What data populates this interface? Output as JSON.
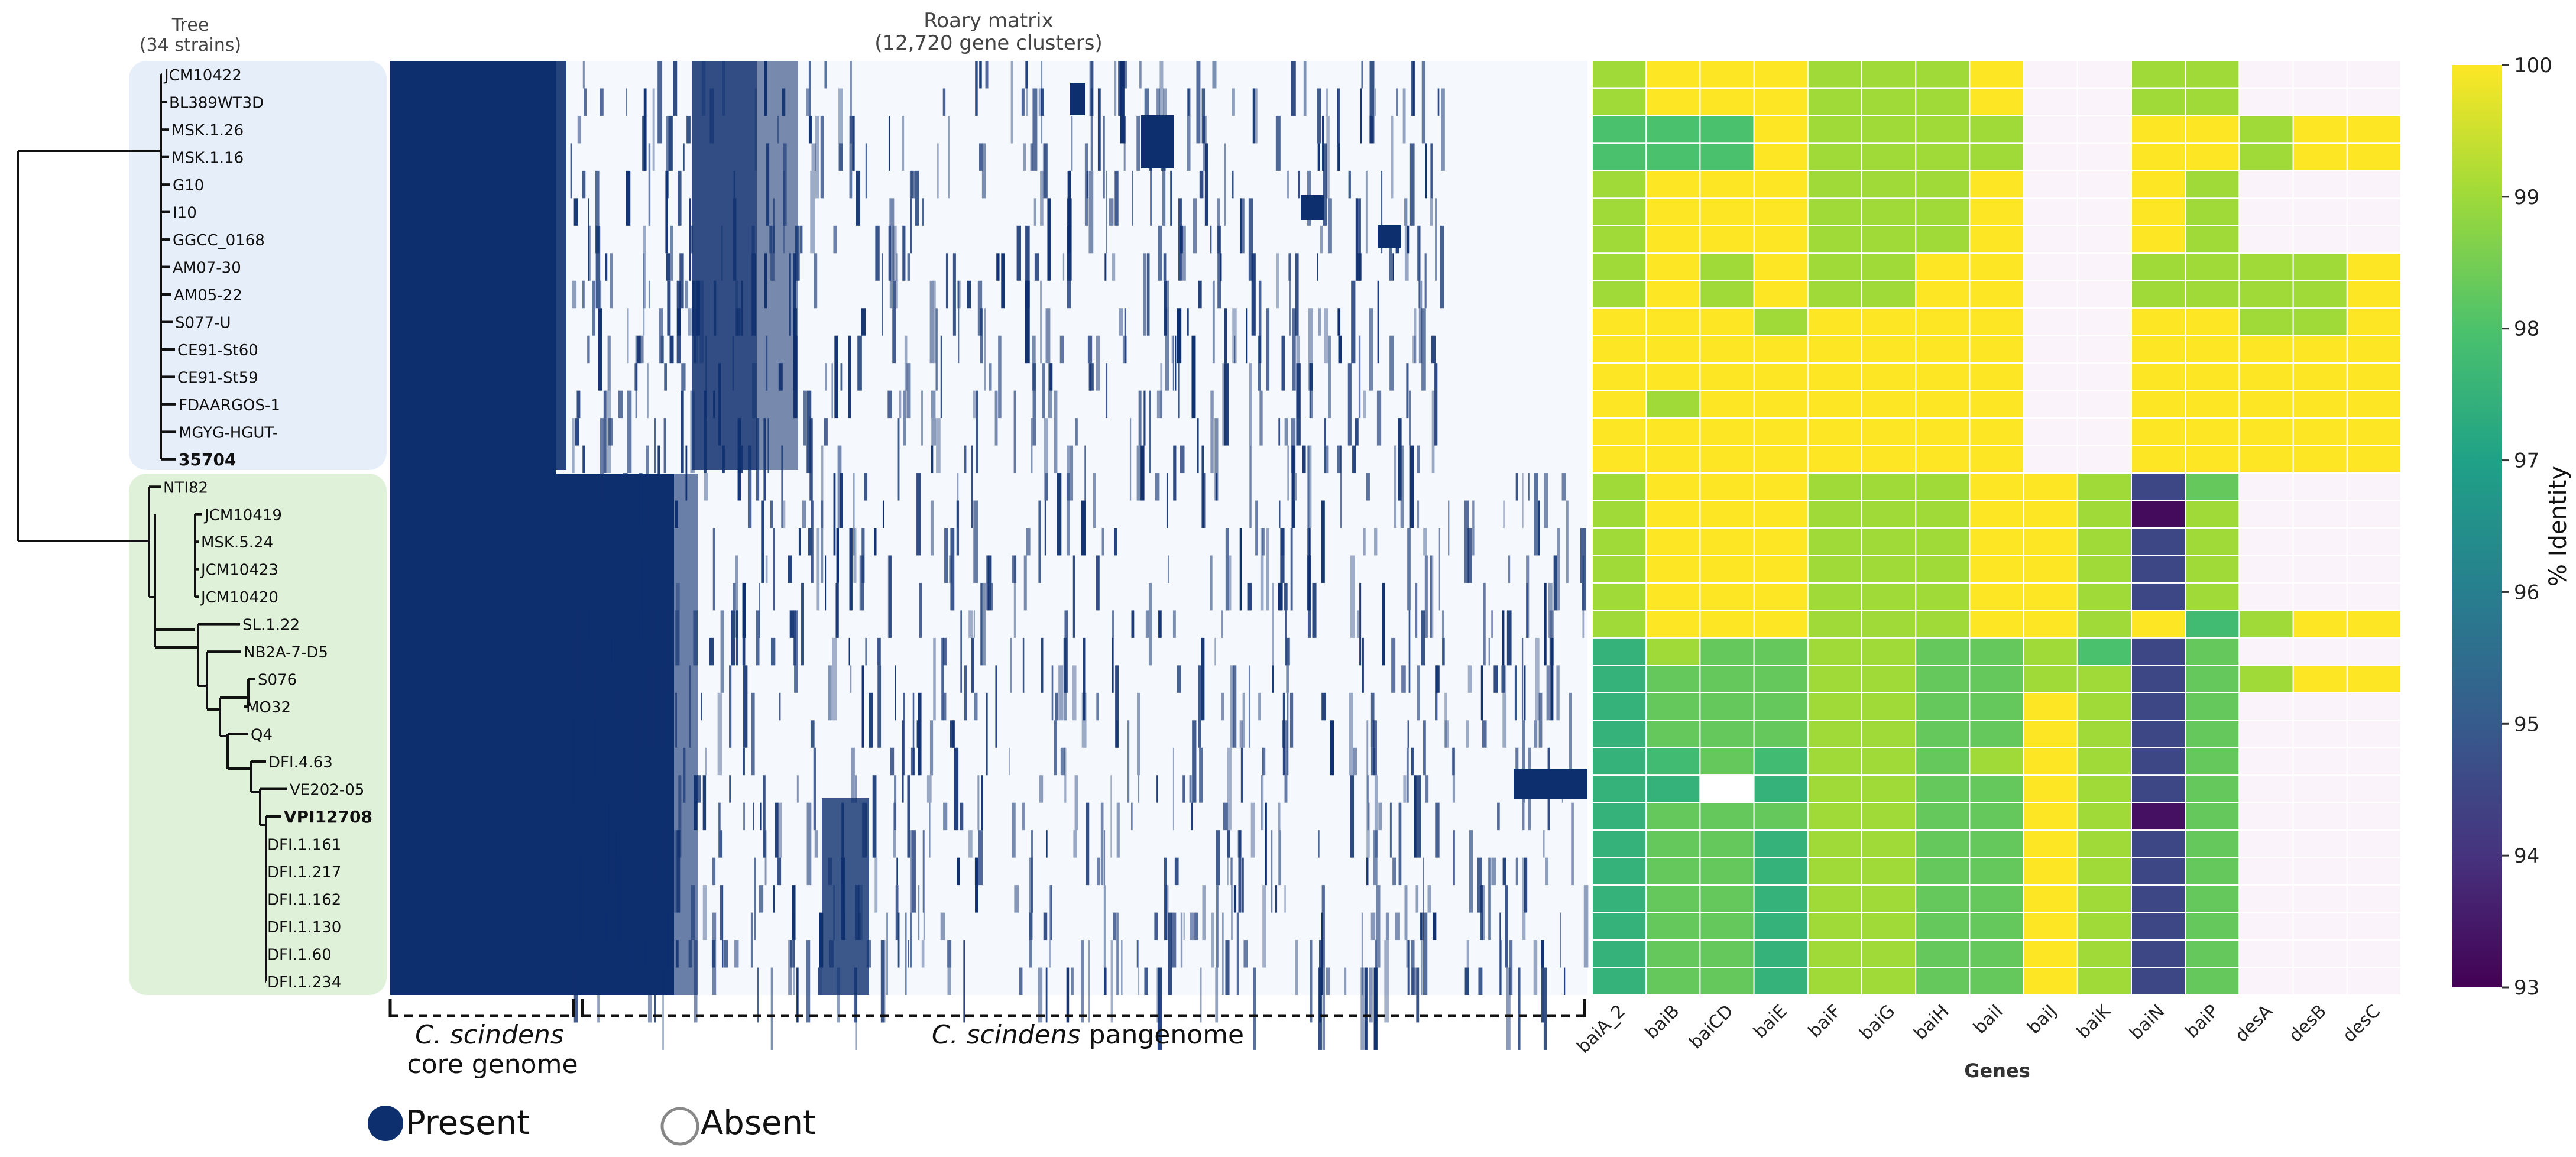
{
  "tree": {
    "title": "Tree",
    "subtitle": "(34 strains)",
    "group1_color": "#e6eefa",
    "group2_color": "#dff1d9"
  },
  "matrix": {
    "title": "Roary matrix",
    "subtitle": "(12,720 gene clusters)",
    "present_color": "#0e2f6e",
    "absent_color": "#f5f8fd"
  },
  "bracket": {
    "core_italic": "C. scindens",
    "core_rest": "core genome",
    "pan_italic": "C. scindens",
    "pan_rest": " pangenome"
  },
  "legend": {
    "present": "Present",
    "absent": "Absent"
  },
  "colorbar": {
    "label": "% Identity",
    "ticks": [
      "100",
      "99",
      "98",
      "97",
      "96",
      "95",
      "94",
      "93"
    ]
  },
  "chart_data": {
    "type": "heatmap",
    "title": "Roary matrix",
    "xlabel": "Genes",
    "ylabel": "",
    "zlabel": "% Identity",
    "zlim": [
      93,
      100
    ],
    "strains": [
      "JCM10422",
      "BL389WT3D",
      "MSK.1.26",
      "MSK.1.16",
      "G10",
      "I10",
      "GGCC_0168",
      "AM07-30",
      "AM05-22",
      "S077-U",
      "CE91-St60",
      "CE91-St59",
      "FDAARGOS-1",
      "MGYG-HGUT-",
      "35704",
      "NTI82",
      "JCM10419",
      "MSK.5.24",
      "JCM10423",
      "JCM10420",
      "SL.1.22",
      "NB2A-7-D5",
      "S076",
      "MO32",
      "Q4",
      "DFI.4.63",
      "VE202-05",
      "VPI12708",
      "DFI.1.161",
      "DFI.1.217",
      "DFI.1.162",
      "DFI.1.130",
      "DFI.1.60",
      "DFI.1.234"
    ],
    "bold_strains": [
      "35704",
      "VPI12708"
    ],
    "genes": [
      "baiA_2",
      "baiB",
      "baiCD",
      "baiE",
      "baiF",
      "baiG",
      "baiH",
      "baiI",
      "baiJ",
      "baiK",
      "baiN",
      "baiP",
      "desA",
      "desB",
      "desC"
    ],
    "values": [
      [
        99,
        100,
        100,
        100,
        99,
        99,
        99,
        100,
        null,
        null,
        99,
        99,
        null,
        null,
        null
      ],
      [
        99,
        100,
        100,
        100,
        99,
        99,
        99,
        100,
        null,
        null,
        99,
        99,
        null,
        null,
        null
      ],
      [
        98,
        98,
        98,
        100,
        99,
        99,
        99,
        99,
        null,
        null,
        100,
        100,
        99,
        100,
        100
      ],
      [
        98,
        98,
        98,
        100,
        99,
        99,
        99,
        99,
        null,
        null,
        100,
        100,
        99,
        100,
        100
      ],
      [
        99,
        100,
        100,
        100,
        99,
        99,
        99,
        100,
        null,
        null,
        100,
        99,
        null,
        null,
        null
      ],
      [
        99,
        100,
        100,
        100,
        99,
        99,
        99,
        100,
        null,
        null,
        100,
        99,
        null,
        null,
        null
      ],
      [
        99,
        100,
        100,
        100,
        99,
        99,
        99,
        100,
        null,
        null,
        100,
        99,
        null,
        null,
        null
      ],
      [
        99,
        100,
        99,
        100,
        99,
        99,
        100,
        100,
        null,
        null,
        99,
        99,
        99,
        99,
        100
      ],
      [
        99,
        100,
        99,
        100,
        99,
        99,
        100,
        100,
        null,
        null,
        99,
        99,
        99,
        99,
        100
      ],
      [
        100,
        100,
        100,
        99,
        100,
        100,
        100,
        100,
        null,
        null,
        100,
        100,
        99,
        99,
        100
      ],
      [
        100,
        100,
        100,
        100,
        100,
        100,
        100,
        100,
        null,
        null,
        100,
        100,
        100,
        100,
        100
      ],
      [
        100,
        100,
        100,
        100,
        100,
        100,
        100,
        100,
        null,
        null,
        100,
        100,
        100,
        100,
        100
      ],
      [
        100,
        99,
        100,
        100,
        100,
        100,
        100,
        100,
        null,
        null,
        100,
        100,
        100,
        100,
        100
      ],
      [
        100,
        100,
        100,
        100,
        100,
        100,
        100,
        100,
        null,
        null,
        100,
        100,
        100,
        100,
        100
      ],
      [
        100,
        100,
        100,
        100,
        100,
        100,
        100,
        100,
        null,
        null,
        100,
        100,
        100,
        100,
        100
      ],
      [
        99,
        100,
        100,
        100,
        99,
        99,
        99,
        100,
        100,
        99,
        94.5,
        98.3,
        null,
        null,
        null
      ],
      [
        99,
        100,
        100,
        100,
        99,
        99,
        99,
        100,
        100,
        99,
        93.2,
        99,
        null,
        null,
        null
      ],
      [
        99,
        100,
        100,
        100,
        99,
        99,
        99,
        100,
        100,
        99,
        94.5,
        99,
        null,
        null,
        null
      ],
      [
        99,
        100,
        100,
        100,
        99,
        99,
        99,
        100,
        100,
        99,
        94.5,
        99,
        null,
        null,
        null
      ],
      [
        99,
        100,
        100,
        100,
        99,
        99,
        99,
        100,
        100,
        99,
        94.5,
        99,
        null,
        null,
        null
      ],
      [
        99,
        100,
        100,
        100,
        99,
        99,
        99,
        100,
        100,
        99,
        100,
        97.8,
        99,
        100,
        100
      ],
      [
        97.5,
        99,
        98.3,
        98.3,
        99,
        99,
        98.3,
        98.3,
        99,
        98,
        94.5,
        98.3,
        null,
        null,
        null
      ],
      [
        97.5,
        98.3,
        98.3,
        98.3,
        99,
        99,
        98.3,
        98.3,
        99,
        99,
        94.5,
        98.3,
        99,
        100,
        100
      ],
      [
        97.5,
        98.3,
        98.3,
        98.3,
        99,
        99,
        98.3,
        98.3,
        100,
        99,
        94.5,
        98.3,
        null,
        null,
        null
      ],
      [
        97.5,
        98.3,
        98.3,
        98.3,
        99,
        99,
        98.3,
        98.3,
        100,
        99,
        94.5,
        98.3,
        null,
        null,
        null
      ],
      [
        97.5,
        97.8,
        98.3,
        97.8,
        99,
        99,
        98.3,
        99,
        100,
        99,
        94.5,
        98.3,
        null,
        null,
        null
      ],
      [
        97.5,
        97.5,
        null,
        97.5,
        99,
        99,
        98.3,
        98.3,
        100,
        99,
        94.5,
        98.3,
        null,
        null,
        null
      ],
      [
        97.5,
        98.3,
        98.3,
        98.3,
        99,
        99,
        98.3,
        98.3,
        100,
        99,
        93.3,
        98.3,
        null,
        null,
        null
      ],
      [
        97.5,
        98.3,
        98.3,
        97.5,
        99,
        99,
        98.3,
        98.3,
        100,
        99,
        94.5,
        98.3,
        null,
        null,
        null
      ],
      [
        97.5,
        98.3,
        98.3,
        97.5,
        99,
        99,
        98.3,
        98.3,
        100,
        99,
        94.5,
        98.3,
        null,
        null,
        null
      ],
      [
        97.5,
        98.3,
        98.3,
        97.5,
        99,
        99,
        98.3,
        98.3,
        100,
        99,
        94.5,
        98.3,
        null,
        null,
        null
      ],
      [
        97.5,
        98.3,
        98.3,
        97.5,
        99,
        99,
        98.3,
        98.3,
        100,
        99,
        94.5,
        98.3,
        null,
        null,
        null
      ],
      [
        97.5,
        98.3,
        98.3,
        97.5,
        99,
        99,
        98.3,
        98.3,
        100,
        99,
        94.5,
        98.3,
        null,
        null,
        null
      ],
      [
        97.5,
        98.3,
        98.3,
        97.5,
        99,
        99,
        98.3,
        98.3,
        100,
        99,
        94.5,
        98.3,
        null,
        null,
        null
      ]
    ]
  }
}
